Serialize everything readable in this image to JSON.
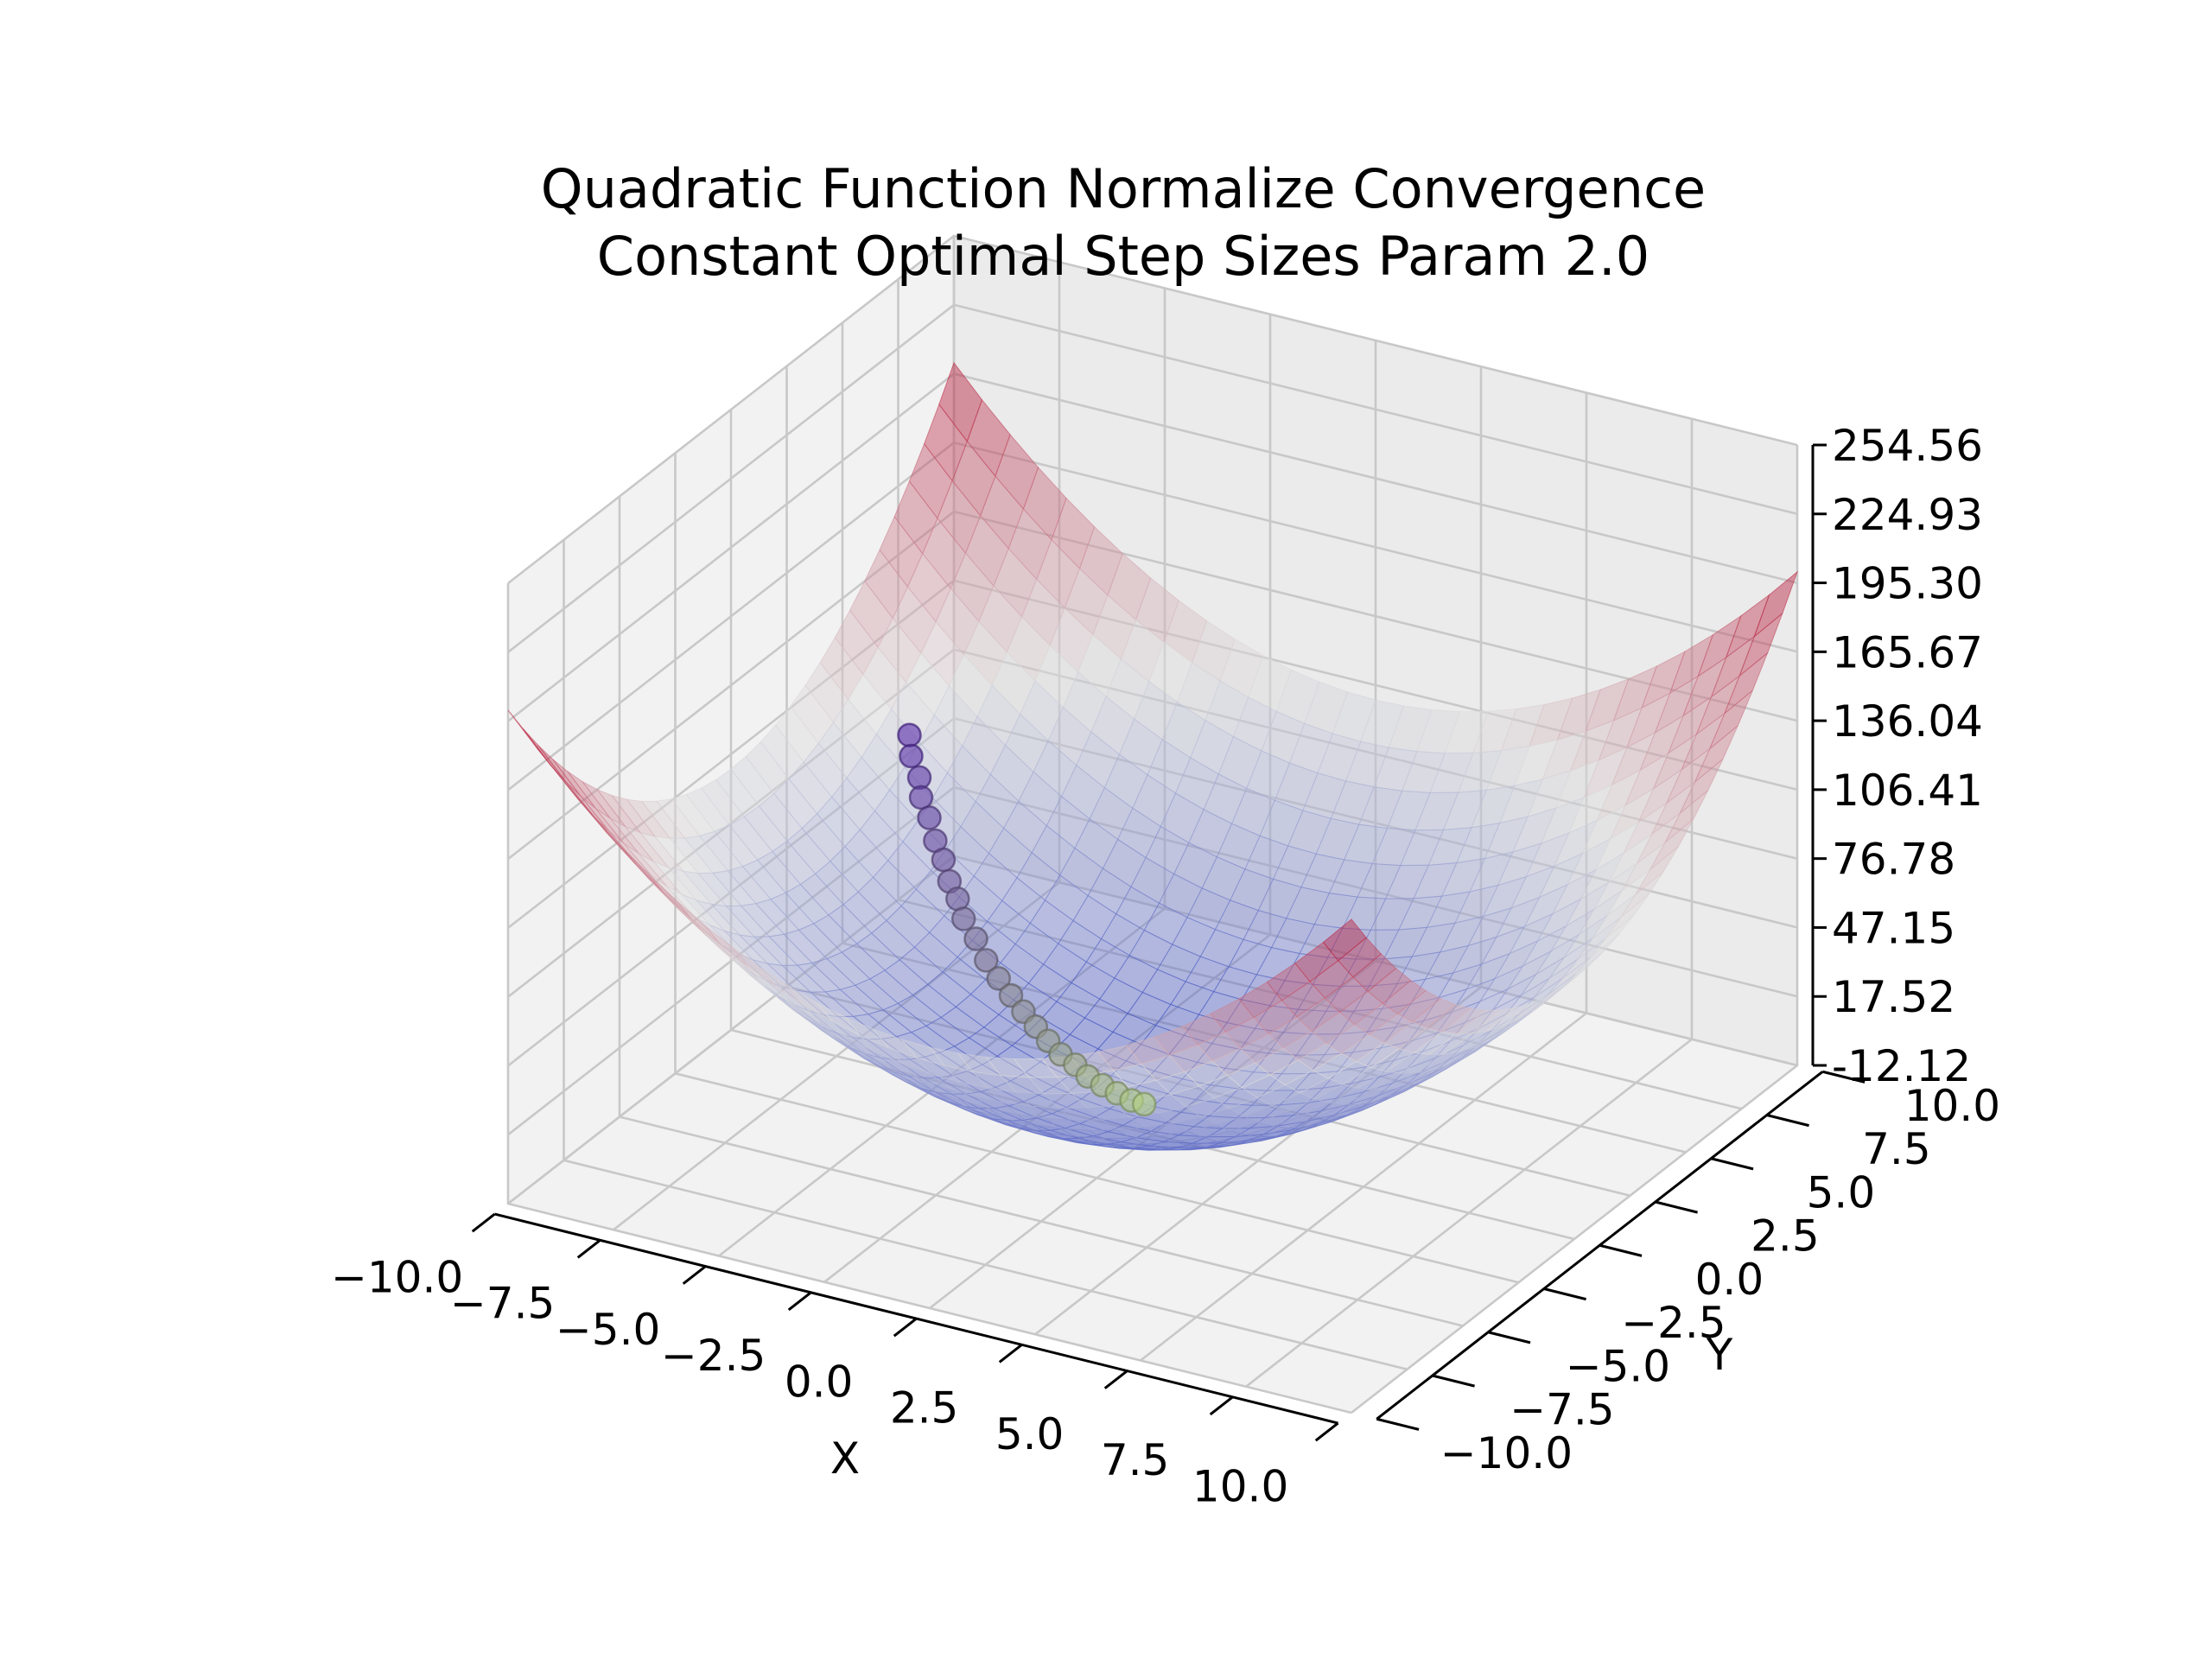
{
  "chart_data": {
    "type": "surface3d",
    "title": [
      "Quadratic Function Normalize Convergence",
      "Constant Optimal Step Sizes Param 2.0"
    ],
    "xlabel": "X",
    "ylabel": "Y",
    "zlabel": "",
    "xlim": [
      -10,
      10
    ],
    "ylim": [
      -10,
      10
    ],
    "zlim": [
      -12.12,
      254.56
    ],
    "x_ticks": [
      "−10.0",
      "−7.5",
      "−5.0",
      "−2.5",
      "0.0",
      "2.5",
      "5.0",
      "7.5",
      "10.0"
    ],
    "y_ticks": [
      "−10.0",
      "−7.5",
      "−5.0",
      "−2.5",
      "0.0",
      "2.5",
      "5.0",
      "7.5",
      "10.0"
    ],
    "z_ticks": [
      "-12.12",
      "17.52",
      "47.15",
      "76.78",
      "106.41",
      "136.04",
      "165.67",
      "195.30",
      "224.93",
      "254.56"
    ],
    "surface": {
      "function": "z = x^2 + y^2",
      "colormap": "coolwarm",
      "alpha": 0.5
    },
    "trajectory": {
      "colormap": "purple-to-green",
      "points": [
        [
          -8.2,
          4.6,
          88.4
        ],
        [
          -8.0,
          4.3,
          82.5
        ],
        [
          -7.7,
          4.1,
          76.1
        ],
        [
          -7.5,
          3.8,
          70.7
        ],
        [
          -7.2,
          3.6,
          64.8
        ],
        [
          -6.9,
          3.3,
          58.5
        ],
        [
          -6.6,
          3.1,
          53.2
        ],
        [
          -6.3,
          2.8,
          47.5
        ],
        [
          -6.0,
          2.6,
          42.8
        ],
        [
          -5.7,
          2.3,
          37.8
        ],
        [
          -5.3,
          2.1,
          32.5
        ],
        [
          -4.9,
          1.8,
          27.3
        ],
        [
          -4.5,
          1.6,
          22.8
        ],
        [
          -4.1,
          1.4,
          18.8
        ],
        [
          -3.7,
          1.2,
          15.1
        ],
        [
          -3.3,
          1.0,
          11.9
        ],
        [
          -2.9,
          0.8,
          9.1
        ],
        [
          -2.5,
          0.6,
          6.6
        ],
        [
          -2.1,
          0.5,
          4.7
        ],
        [
          -1.7,
          0.3,
          3.0
        ],
        [
          -1.3,
          0.2,
          1.7
        ],
        [
          -0.9,
          0.1,
          0.8
        ],
        [
          -0.5,
          0.0,
          0.3
        ],
        [
          -0.2,
          0.0,
          0.0
        ]
      ]
    }
  }
}
